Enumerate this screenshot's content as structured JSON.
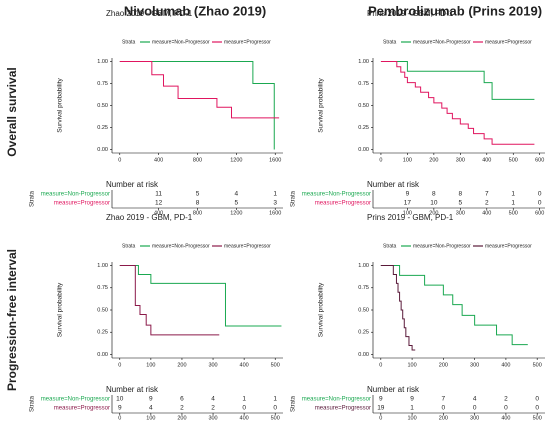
{
  "columns": [
    "Nivolumab (Zhao 2019)",
    "Pembrolizumab (Prins 2019)"
  ],
  "rows": [
    "Overall survival",
    "Progression-free interval"
  ],
  "chart_data": [
    {
      "type": "step",
      "title": "Zhao 2019 - GBM, PD-1",
      "legend_title": "Strata",
      "ylabel": "Survival probability",
      "xlim": [
        -80,
        1680
      ],
      "xticks": [
        0,
        400,
        800,
        1200,
        1600
      ],
      "ylim": [
        -0.04,
        1.04
      ],
      "yticks": [
        {
          "value": 0,
          "label": "0.00"
        },
        {
          "value": 0.25,
          "label": "0.25"
        },
        {
          "value": 0.5,
          "label": "0.50"
        },
        {
          "value": 0.75,
          "label": "0.75"
        },
        {
          "value": 1,
          "label": "1.00"
        }
      ],
      "series": [
        {
          "name": "measure=Non-Progressor",
          "color": "#1aa850",
          "x": [
            0,
            1370,
            1590
          ],
          "values": [
            1,
            0.75,
            0
          ]
        },
        {
          "name": "measure=Progressor",
          "color": "#e0155f",
          "x": [
            0,
            330,
            450,
            600,
            1000,
            1150,
            1640
          ],
          "values": [
            1,
            0.85,
            0.72,
            0.58,
            0.48,
            0.36,
            0.36
          ]
        }
      ],
      "risk_table": {
        "title": "Number at risk",
        "label": "Strata",
        "xticks": [
          400,
          800,
          1200,
          1600
        ],
        "counts": [
          [
            11,
            5,
            4,
            1
          ],
          [
            12,
            8,
            5,
            3
          ]
        ]
      }
    },
    {
      "type": "step",
      "title": "Prins 2019 - GBM, PD-1",
      "legend_title": "Strata",
      "ylabel": "Survival probability",
      "xlim": [
        -30,
        620
      ],
      "xticks": [
        0,
        100,
        200,
        300,
        400,
        500,
        600
      ],
      "ylim": [
        -0.04,
        1.04
      ],
      "yticks": [
        {
          "value": 0,
          "label": "0.00"
        },
        {
          "value": 0.25,
          "label": "0.25"
        },
        {
          "value": 0.5,
          "label": "0.50"
        },
        {
          "value": 0.75,
          "label": "0.75"
        },
        {
          "value": 1,
          "label": "1.00"
        }
      ],
      "series": [
        {
          "name": "measure=Non-Progressor",
          "color": "#1aa850",
          "x": [
            0,
            100,
            390,
            420,
            580
          ],
          "values": [
            1,
            0.89,
            0.76,
            0.57,
            0.57
          ]
        },
        {
          "name": "measure=Progressor",
          "color": "#e0155f",
          "x": [
            0,
            60,
            75,
            90,
            100,
            130,
            150,
            180,
            200,
            230,
            250,
            270,
            300,
            330,
            350,
            390,
            420,
            580
          ],
          "values": [
            1,
            0.94,
            0.88,
            0.82,
            0.76,
            0.71,
            0.65,
            0.59,
            0.53,
            0.47,
            0.41,
            0.35,
            0.29,
            0.24,
            0.18,
            0.12,
            0.06,
            0.06
          ]
        }
      ],
      "risk_table": {
        "title": "Number at risk",
        "label": "Strata",
        "xticks": [
          100,
          200,
          300,
          400,
          500,
          600
        ],
        "counts": [
          [
            9,
            8,
            8,
            7,
            1,
            0
          ],
          [
            17,
            10,
            5,
            2,
            1,
            0
          ]
        ]
      }
    },
    {
      "type": "step",
      "title": "Zhao 2019 - GBM, PD-1",
      "legend_title": "Strata",
      "ylabel": "Survival probability",
      "xlim": [
        -25,
        525
      ],
      "xticks": [
        0,
        100,
        200,
        300,
        400,
        500
      ],
      "ylim": [
        -0.04,
        1.04
      ],
      "yticks": [
        {
          "value": 0,
          "label": "0.00"
        },
        {
          "value": 0.25,
          "label": "0.25"
        },
        {
          "value": 0.5,
          "label": "0.50"
        },
        {
          "value": 0.75,
          "label": "0.75"
        },
        {
          "value": 1,
          "label": "1.00"
        }
      ],
      "series": [
        {
          "name": "measure=Non-Progressor",
          "color": "#1aa850",
          "x": [
            0,
            60,
            100,
            340,
            520
          ],
          "values": [
            1,
            0.9,
            0.8,
            0.32,
            0.32
          ]
        },
        {
          "name": "measure=Progressor",
          "color": "#8b1a4a",
          "x": [
            0,
            50,
            65,
            85,
            100,
            320
          ],
          "values": [
            1,
            0.55,
            0.45,
            0.33,
            0.22,
            0.22
          ]
        }
      ],
      "risk_table": {
        "title": "Number at risk",
        "label": "Strata",
        "xticks": [
          0,
          100,
          200,
          300,
          400,
          500
        ],
        "counts": [
          [
            10,
            9,
            6,
            4,
            1,
            1
          ],
          [
            9,
            4,
            2,
            2,
            0,
            0
          ]
        ]
      }
    },
    {
      "type": "step",
      "title": "Prins 2019 - GBM, PD-1",
      "legend_title": "Strata",
      "ylabel": "Survival probability",
      "xlim": [
        -25,
        525
      ],
      "xticks": [
        0,
        100,
        200,
        300,
        400,
        500
      ],
      "ylim": [
        -0.04,
        1.04
      ],
      "yticks": [
        {
          "value": 0,
          "label": "0.00"
        },
        {
          "value": 0.25,
          "label": "0.25"
        },
        {
          "value": 0.5,
          "label": "0.50"
        },
        {
          "value": 0.75,
          "label": "0.75"
        },
        {
          "value": 1,
          "label": "1.00"
        }
      ],
      "series": [
        {
          "name": "measure=Non-Progressor",
          "color": "#1aa850",
          "x": [
            0,
            60,
            140,
            200,
            230,
            260,
            300,
            370,
            420,
            460,
            470
          ],
          "values": [
            1,
            0.89,
            0.78,
            0.67,
            0.56,
            0.44,
            0.33,
            0.22,
            0.11,
            0.11,
            0.11
          ]
        },
        {
          "name": "measure=Progressor",
          "color": "#5a1a3a",
          "x": [
            0,
            40,
            50,
            55,
            60,
            65,
            70,
            75,
            80,
            90,
            100,
            110
          ],
          "values": [
            1,
            0.9,
            0.8,
            0.7,
            0.6,
            0.5,
            0.4,
            0.3,
            0.2,
            0.1,
            0.05,
            0.05
          ]
        }
      ],
      "risk_table": {
        "title": "Number at risk",
        "label": "Strata",
        "xticks": [
          0,
          100,
          200,
          300,
          400,
          500
        ],
        "counts": [
          [
            9,
            9,
            7,
            4,
            2,
            0
          ],
          [
            19,
            1,
            0,
            0,
            0,
            0
          ]
        ]
      }
    }
  ]
}
